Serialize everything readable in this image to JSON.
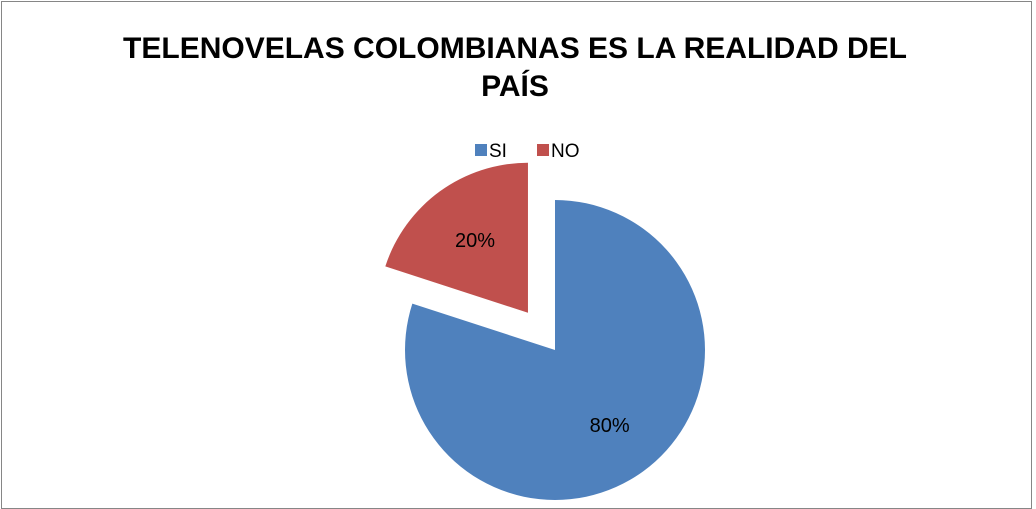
{
  "chart_data": {
    "type": "pie",
    "title": "TELENOVELAS COLOMBIANAS ES LA REALIDAD DEL PAÍS",
    "categories": [
      "SI",
      "NO"
    ],
    "values": [
      80,
      20
    ],
    "data_labels": [
      "80%",
      "20%"
    ],
    "colors": [
      "#4F81BD",
      "#C0504D"
    ],
    "exploded": true,
    "legend_position": "top"
  }
}
